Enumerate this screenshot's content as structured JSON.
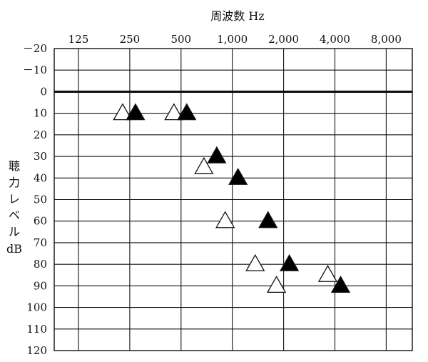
{
  "chart_data": {
    "type": "scatter",
    "title": "",
    "xlabel": "周波数 Hz",
    "ylabel": [
      "聴",
      "力",
      "レ",
      "ベ",
      "ル",
      "dB"
    ],
    "x_ticks": [
      "125",
      "250",
      "500",
      "1,000",
      "2,000",
      "4,000",
      "8,000"
    ],
    "x_values": [
      125,
      250,
      500,
      1000,
      2000,
      4000,
      8000
    ],
    "y_ticks": [
      "－20",
      "－10",
      "0",
      "10",
      "20",
      "30",
      "40",
      "50",
      "60",
      "70",
      "80",
      "90",
      "100",
      "110",
      "120"
    ],
    "ylim": [
      -20,
      120
    ],
    "y_inverted": true,
    "x_scale": "log2",
    "grid": true,
    "emphasized_line_y": 0,
    "series": [
      {
        "marker": "open-triangle",
        "color": "#ffffff",
        "points": [
          {
            "x": 250,
            "y": 10
          },
          {
            "x": 500,
            "y": 10
          },
          {
            "x": 750,
            "y": 35
          },
          {
            "x": 1000,
            "y": 60
          },
          {
            "x": 1500,
            "y": 80
          },
          {
            "x": 2000,
            "y": 90
          },
          {
            "x": 4000,
            "y": 85
          }
        ]
      },
      {
        "marker": "filled-triangle",
        "color": "#000000",
        "points": [
          {
            "x": 250,
            "y": 10
          },
          {
            "x": 500,
            "y": 10
          },
          {
            "x": 750,
            "y": 30
          },
          {
            "x": 1000,
            "y": 40
          },
          {
            "x": 1500,
            "y": 60
          },
          {
            "x": 2000,
            "y": 80
          },
          {
            "x": 4000,
            "y": 90
          }
        ]
      }
    ]
  }
}
